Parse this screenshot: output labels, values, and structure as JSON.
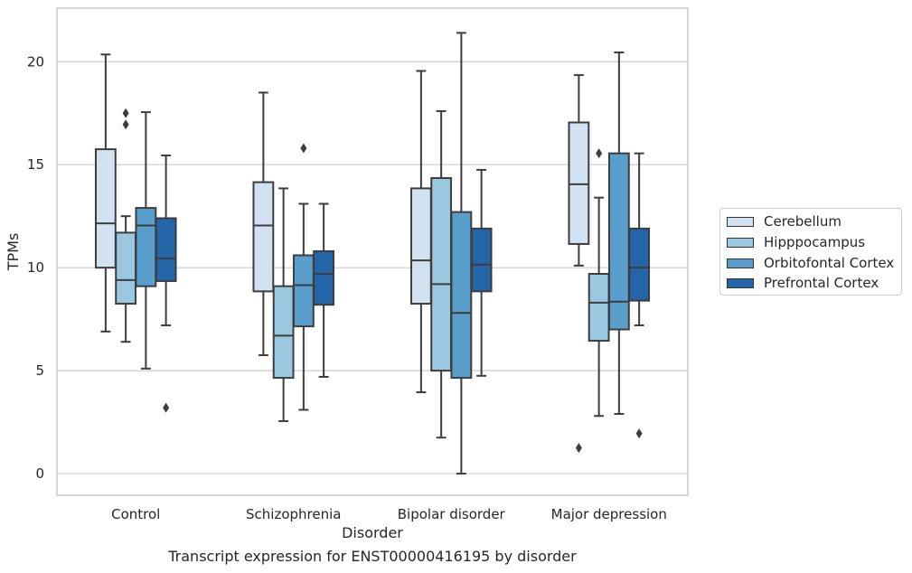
{
  "chart_data": {
    "type": "boxplot",
    "caption": "Transcript expression for ENST00000416195 by disorder",
    "xlabel": "Disorder",
    "ylabel": "TPMs",
    "ylim": [
      -1.05,
      22.6
    ],
    "yticks": [
      0,
      5,
      10,
      15,
      20
    ],
    "categories": [
      "Control",
      "Schizophrenia",
      "Bipolar disorder",
      "Major depression"
    ],
    "grid": "horizontal",
    "legend_position": "right",
    "series": [
      {
        "name": "Cerebellum",
        "color": "#d2e2f1",
        "boxes": [
          {
            "whislo": 6.9,
            "q1": 10.0,
            "med": 12.15,
            "q3": 15.75,
            "whishi": 20.35,
            "fliers": []
          },
          {
            "whislo": 5.75,
            "q1": 8.85,
            "med": 12.05,
            "q3": 14.15,
            "whishi": 18.5,
            "fliers": []
          },
          {
            "whislo": 3.95,
            "q1": 8.25,
            "med": 10.35,
            "q3": 13.85,
            "whishi": 19.55,
            "fliers": []
          },
          {
            "whislo": 10.1,
            "q1": 11.15,
            "med": 14.05,
            "q3": 17.05,
            "whishi": 19.35,
            "fliers": [
              1.25
            ]
          }
        ]
      },
      {
        "name": "Hipppocampus",
        "color": "#9ac8e0",
        "boxes": [
          {
            "whislo": 6.4,
            "q1": 8.25,
            "med": 9.4,
            "q3": 11.7,
            "whishi": 12.5,
            "fliers": [
              16.95,
              17.5
            ]
          },
          {
            "whislo": 2.55,
            "q1": 4.65,
            "med": 6.7,
            "q3": 9.1,
            "whishi": 13.85,
            "fliers": []
          },
          {
            "whislo": 1.75,
            "q1": 5.0,
            "med": 9.2,
            "q3": 14.35,
            "whishi": 17.6,
            "fliers": []
          },
          {
            "whislo": 2.8,
            "q1": 6.45,
            "med": 8.3,
            "q3": 9.7,
            "whishi": 13.4,
            "fliers": [
              15.55
            ]
          }
        ]
      },
      {
        "name": "Orbitofontal Cortex",
        "color": "#5a9fcb",
        "boxes": [
          {
            "whislo": 5.1,
            "q1": 9.1,
            "med": 12.05,
            "q3": 12.9,
            "whishi": 17.55,
            "fliers": []
          },
          {
            "whislo": 3.1,
            "q1": 7.15,
            "med": 9.15,
            "q3": 10.6,
            "whishi": 13.1,
            "fliers": [
              15.8
            ]
          },
          {
            "whislo": 0.0,
            "q1": 4.65,
            "med": 7.8,
            "q3": 12.7,
            "whishi": 21.4,
            "fliers": []
          },
          {
            "whislo": 2.9,
            "q1": 7.0,
            "med": 8.35,
            "q3": 15.55,
            "whishi": 20.45,
            "fliers": []
          }
        ]
      },
      {
        "name": "Prefrontal Cortex",
        "color": "#2465a8",
        "boxes": [
          {
            "whislo": 7.2,
            "q1": 9.35,
            "med": 10.45,
            "q3": 12.4,
            "whishi": 15.45,
            "fliers": [
              3.2
            ]
          },
          {
            "whislo": 4.7,
            "q1": 8.2,
            "med": 9.7,
            "q3": 10.8,
            "whishi": 13.1,
            "fliers": []
          },
          {
            "whislo": 4.75,
            "q1": 8.85,
            "med": 10.15,
            "q3": 11.9,
            "whishi": 14.75,
            "fliers": []
          },
          {
            "whislo": 7.2,
            "q1": 8.4,
            "med": 10.0,
            "q3": 11.9,
            "whishi": 15.55,
            "fliers": [
              1.95
            ]
          }
        ]
      }
    ]
  }
}
